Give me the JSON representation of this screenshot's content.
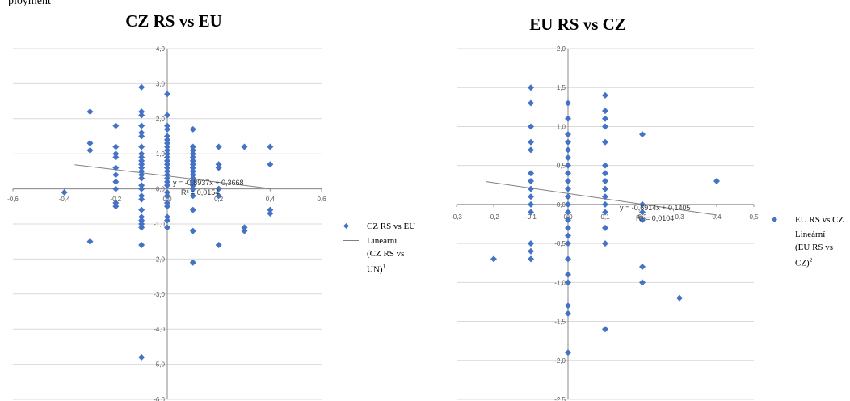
{
  "caption": "ployment",
  "chart_data": [
    {
      "type": "scatter",
      "title": "CZ RS vs EU",
      "xlim": [
        -0.6,
        0.6
      ],
      "ylim": [
        -6.0,
        4.0
      ],
      "x_ticks": [
        "-0,6",
        "-0,4",
        "-0,2",
        "0,0",
        "0,2",
        "0,4",
        "0,6"
      ],
      "y_ticks": [
        "4,0",
        "3,0",
        "2,0",
        "1,0",
        "0,0",
        "-1,0",
        "-2,0",
        "-3,0",
        "-4,0",
        "-5,0",
        "-6,0"
      ],
      "trendline": {
        "slope": -0.8937,
        "intercept": 0.3668
      },
      "equation": "y = -0,8937x + 0,3668",
      "r2": "R² = 0,0154",
      "legend": {
        "series": "CZ RS vs EU",
        "trend_lines": [
          "Lineární",
          "(CZ RS vs",
          "UN)"
        ],
        "footnote": "1"
      },
      "points": [
        [
          -0.4,
          -0.1
        ],
        [
          -0.3,
          2.2
        ],
        [
          -0.3,
          1.3
        ],
        [
          -0.3,
          1.1
        ],
        [
          -0.3,
          -1.5
        ],
        [
          -0.2,
          1.8
        ],
        [
          -0.2,
          1.2
        ],
        [
          -0.2,
          1.0
        ],
        [
          -0.2,
          0.9
        ],
        [
          -0.2,
          0.6
        ],
        [
          -0.2,
          0.4
        ],
        [
          -0.2,
          0.2
        ],
        [
          -0.2,
          0.0
        ],
        [
          -0.2,
          -0.4
        ],
        [
          -0.2,
          -0.5
        ],
        [
          -0.1,
          2.9
        ],
        [
          -0.1,
          2.2
        ],
        [
          -0.1,
          2.1
        ],
        [
          -0.1,
          1.8
        ],
        [
          -0.1,
          1.6
        ],
        [
          -0.1,
          1.5
        ],
        [
          -0.1,
          1.2
        ],
        [
          -0.1,
          1.0
        ],
        [
          -0.1,
          0.9
        ],
        [
          -0.1,
          0.8
        ],
        [
          -0.1,
          0.7
        ],
        [
          -0.1,
          0.6
        ],
        [
          -0.1,
          0.5
        ],
        [
          -0.1,
          0.4
        ],
        [
          -0.1,
          0.3
        ],
        [
          -0.1,
          0.1
        ],
        [
          -0.1,
          0.0
        ],
        [
          -0.1,
          -0.2
        ],
        [
          -0.1,
          -0.3
        ],
        [
          -0.1,
          -0.6
        ],
        [
          -0.1,
          -0.8
        ],
        [
          -0.1,
          -0.9
        ],
        [
          -0.1,
          -1.0
        ],
        [
          -0.1,
          -1.1
        ],
        [
          -0.1,
          -1.6
        ],
        [
          0.0,
          2.7
        ],
        [
          0.0,
          2.1
        ],
        [
          0.0,
          1.8
        ],
        [
          0.0,
          1.7
        ],
        [
          0.0,
          1.5
        ],
        [
          0.0,
          1.4
        ],
        [
          0.0,
          1.3
        ],
        [
          0.0,
          1.2
        ],
        [
          0.0,
          1.1
        ],
        [
          0.0,
          1.0
        ],
        [
          0.0,
          0.9
        ],
        [
          0.0,
          0.8
        ],
        [
          0.0,
          0.7
        ],
        [
          0.0,
          0.6
        ],
        [
          0.0,
          0.5
        ],
        [
          0.0,
          0.4
        ],
        [
          0.0,
          0.3
        ],
        [
          0.0,
          0.2
        ],
        [
          0.0,
          0.1
        ],
        [
          0.0,
          -0.1
        ],
        [
          0.0,
          -0.2
        ],
        [
          0.0,
          -0.4
        ],
        [
          0.0,
          -0.5
        ],
        [
          0.0,
          -0.8
        ],
        [
          0.0,
          -0.9
        ],
        [
          0.0,
          -1.1
        ],
        [
          0.1,
          1.7
        ],
        [
          0.1,
          1.2
        ],
        [
          0.1,
          1.1
        ],
        [
          0.1,
          1.0
        ],
        [
          0.1,
          0.9
        ],
        [
          0.1,
          0.8
        ],
        [
          0.1,
          0.7
        ],
        [
          0.1,
          0.6
        ],
        [
          0.1,
          0.5
        ],
        [
          0.1,
          0.4
        ],
        [
          0.1,
          0.3
        ],
        [
          0.1,
          0.2
        ],
        [
          0.1,
          0.1
        ],
        [
          0.1,
          0.0
        ],
        [
          0.1,
          -0.2
        ],
        [
          0.1,
          -0.6
        ],
        [
          0.1,
          -1.2
        ],
        [
          0.1,
          -2.1
        ],
        [
          0.2,
          1.2
        ],
        [
          0.2,
          0.7
        ],
        [
          0.2,
          0.6
        ],
        [
          0.2,
          0.0
        ],
        [
          0.2,
          -0.2
        ],
        [
          0.2,
          -1.6
        ],
        [
          0.3,
          1.2
        ],
        [
          0.3,
          -1.1
        ],
        [
          0.3,
          -1.2
        ],
        [
          0.4,
          1.2
        ],
        [
          0.4,
          0.7
        ],
        [
          0.4,
          -0.6
        ],
        [
          0.4,
          -0.7
        ],
        [
          -0.1,
          -4.8
        ]
      ]
    },
    {
      "type": "scatter",
      "title": "EU RS vs CZ",
      "xlim": [
        -0.3,
        0.5
      ],
      "ylim": [
        -2.5,
        2.0
      ],
      "x_ticks": [
        "-0,3",
        "-0,2",
        "-0,1",
        "0,0",
        "0,1",
        "0,2",
        "0,3",
        "0,4",
        "0,5"
      ],
      "y_ticks": [
        "2,0",
        "1,5",
        "1,0",
        "0,5",
        "0,0",
        "-0,5",
        "-1,0",
        "-1,5",
        "-2,0",
        "-2,5"
      ],
      "trendline": {
        "slope": -0.6914,
        "intercept": 0.1405
      },
      "equation": "y = -0,6914x + 0,1405",
      "r2": "R² = 0,0104",
      "legend": {
        "series": "EU RS vs CZ",
        "trend_lines": [
          "Lineární",
          "(EU RS vs",
          "CZ)"
        ],
        "footnote": "2"
      },
      "points": [
        [
          -0.2,
          -0.7
        ],
        [
          -0.1,
          1.5
        ],
        [
          -0.1,
          1.3
        ],
        [
          -0.1,
          1.0
        ],
        [
          -0.1,
          0.8
        ],
        [
          -0.1,
          0.7
        ],
        [
          -0.1,
          0.4
        ],
        [
          -0.1,
          0.3
        ],
        [
          -0.1,
          0.2
        ],
        [
          -0.1,
          0.1
        ],
        [
          -0.1,
          0.0
        ],
        [
          -0.1,
          -0.1
        ],
        [
          -0.1,
          -0.5
        ],
        [
          -0.1,
          -0.6
        ],
        [
          -0.1,
          -0.7
        ],
        [
          0.0,
          1.3
        ],
        [
          0.0,
          1.1
        ],
        [
          0.0,
          0.9
        ],
        [
          0.0,
          0.8
        ],
        [
          0.0,
          0.7
        ],
        [
          0.0,
          0.6
        ],
        [
          0.0,
          0.5
        ],
        [
          0.0,
          0.4
        ],
        [
          0.0,
          0.3
        ],
        [
          0.0,
          0.2
        ],
        [
          0.0,
          0.1
        ],
        [
          0.0,
          0.0
        ],
        [
          0.0,
          -0.1
        ],
        [
          0.0,
          -0.2
        ],
        [
          0.0,
          -0.3
        ],
        [
          0.0,
          -0.4
        ],
        [
          0.0,
          -0.5
        ],
        [
          0.0,
          -0.7
        ],
        [
          0.0,
          -0.9
        ],
        [
          0.0,
          -1.0
        ],
        [
          0.0,
          -1.3
        ],
        [
          0.0,
          -1.4
        ],
        [
          0.0,
          -1.9
        ],
        [
          0.1,
          1.4
        ],
        [
          0.1,
          1.2
        ],
        [
          0.1,
          1.1
        ],
        [
          0.1,
          1.0
        ],
        [
          0.1,
          0.8
        ],
        [
          0.1,
          0.5
        ],
        [
          0.1,
          0.4
        ],
        [
          0.1,
          0.3
        ],
        [
          0.1,
          0.2
        ],
        [
          0.1,
          0.1
        ],
        [
          0.1,
          0.0
        ],
        [
          0.1,
          -0.1
        ],
        [
          0.1,
          -0.3
        ],
        [
          0.1,
          -0.5
        ],
        [
          0.1,
          -1.6
        ],
        [
          0.2,
          0.9
        ],
        [
          0.2,
          0.0
        ],
        [
          0.2,
          -0.1
        ],
        [
          0.2,
          -0.2
        ],
        [
          0.2,
          -0.8
        ],
        [
          0.2,
          -1.0
        ],
        [
          0.3,
          -1.2
        ],
        [
          0.4,
          0.3
        ]
      ]
    }
  ]
}
